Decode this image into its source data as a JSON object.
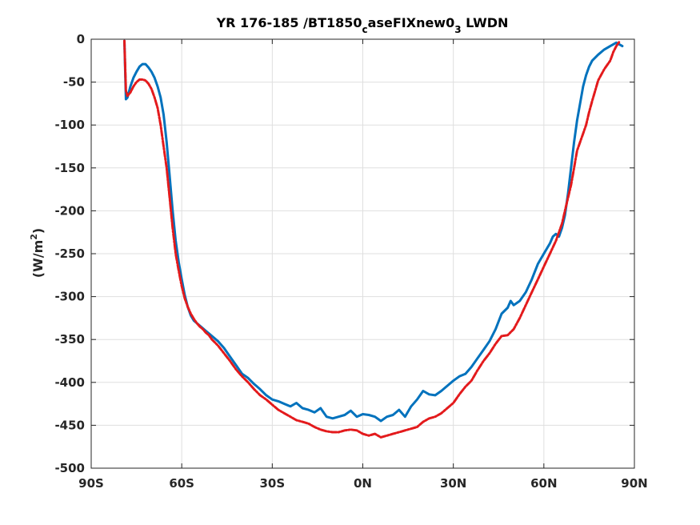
{
  "chart_data": {
    "type": "line",
    "title_parts": {
      "main": "YR 176-185 /BT1850",
      "sub1": "c",
      "mid": "aseFIXnew0",
      "sub2": "3",
      "end": " LWDN"
    },
    "ylabel_parts": {
      "main": "(W/m",
      "sup": "2",
      "end": ")"
    },
    "xlabel": "",
    "xlim": [
      -90,
      90
    ],
    "ylim": [
      -500,
      0
    ],
    "grid": true,
    "x_ticks": [
      {
        "value": -90,
        "label": "90S"
      },
      {
        "value": -60,
        "label": "60S"
      },
      {
        "value": -30,
        "label": "30S"
      },
      {
        "value": 0,
        "label": "0N"
      },
      {
        "value": 30,
        "label": "30N"
      },
      {
        "value": 60,
        "label": "60N"
      },
      {
        "value": 90,
        "label": "90N"
      }
    ],
    "y_ticks": [
      {
        "value": 0,
        "label": "0"
      },
      {
        "value": -50,
        "label": "-50"
      },
      {
        "value": -100,
        "label": "-100"
      },
      {
        "value": -150,
        "label": "-150"
      },
      {
        "value": -200,
        "label": "-200"
      },
      {
        "value": -250,
        "label": "-250"
      },
      {
        "value": -300,
        "label": "-300"
      },
      {
        "value": -350,
        "label": "-350"
      },
      {
        "value": -400,
        "label": "-400"
      },
      {
        "value": -450,
        "label": "-450"
      },
      {
        "value": -500,
        "label": "-500"
      }
    ],
    "series": [
      {
        "color": "#0072bd",
        "style": "solid",
        "x": [
          -79,
          -78.5,
          -78,
          -77,
          -76,
          -75,
          -74,
          -73,
          -72,
          -71,
          -70,
          -69,
          -68,
          -67,
          -66,
          -65,
          -64,
          -63,
          -62,
          -61,
          -60,
          -59,
          -58,
          -57,
          -56,
          -55,
          -54,
          -53,
          -52,
          -51,
          -50,
          -48,
          -46,
          -44,
          -42,
          -40,
          -38,
          -36,
          -34,
          -32,
          -30,
          -28,
          -26,
          -24,
          -22,
          -20,
          -18,
          -16,
          -14,
          -12,
          -10,
          -8,
          -6,
          -4,
          -2,
          0,
          2,
          4,
          6,
          8,
          10,
          12,
          14,
          16,
          18,
          20,
          22,
          24,
          26,
          28,
          30,
          32,
          34,
          36,
          38,
          40,
          42,
          44,
          46,
          48,
          49,
          50,
          52,
          54,
          56,
          58,
          60,
          62,
          63,
          64,
          65,
          66,
          67,
          68,
          69,
          70,
          71,
          72,
          73,
          74,
          75,
          76,
          78,
          80,
          82,
          84,
          85,
          86
        ],
        "y": [
          -2,
          -70,
          -68,
          -55,
          -45,
          -38,
          -32,
          -29,
          -29,
          -33,
          -38,
          -45,
          -55,
          -68,
          -88,
          -120,
          -160,
          -200,
          -235,
          -260,
          -280,
          -298,
          -312,
          -322,
          -328,
          -331,
          -334,
          -337,
          -340,
          -343,
          -346,
          -352,
          -360,
          -370,
          -380,
          -390,
          -395,
          -402,
          -408,
          -415,
          -420,
          -422,
          -425,
          -428,
          -424,
          -430,
          -432,
          -435,
          -430,
          -440,
          -442,
          -440,
          -438,
          -433,
          -440,
          -437,
          -438,
          -440,
          -445,
          -440,
          -438,
          -432,
          -440,
          -428,
          -420,
          -410,
          -414,
          -415,
          -410,
          -404,
          -398,
          -393,
          -390,
          -382,
          -372,
          -362,
          -352,
          -338,
          -320,
          -313,
          -305,
          -310,
          -305,
          -295,
          -280,
          -262,
          -250,
          -238,
          -230,
          -227,
          -230,
          -220,
          -205,
          -180,
          -150,
          -120,
          -95,
          -75,
          -55,
          -42,
          -32,
          -25,
          -18,
          -12,
          -8,
          -4,
          -6,
          -8
        ]
      },
      {
        "color": "#e31a1c",
        "style": "dashed",
        "x": [
          -79,
          -78.5,
          -78,
          -77,
          -76,
          -75,
          -74,
          -73,
          -72,
          -71,
          -70,
          -69,
          -68,
          -67,
          -66,
          -65,
          -64,
          -63,
          -62,
          -61,
          -60,
          -59,
          -58,
          -57,
          -56,
          -55,
          -54,
          -53,
          -52,
          -51,
          -50,
          -48,
          -46,
          -44,
          -42,
          -40,
          -38,
          -36,
          -34,
          -32,
          -30,
          -28,
          -26,
          -24,
          -22,
          -20,
          -18,
          -16,
          -14,
          -12,
          -10,
          -8,
          -6,
          -4,
          -2,
          0,
          2,
          4,
          6,
          8,
          10,
          12,
          14,
          16,
          18,
          20,
          22,
          24,
          26,
          28,
          30,
          32,
          34,
          36,
          38,
          40,
          42,
          44,
          46,
          48,
          50,
          52,
          54,
          56,
          58,
          60,
          62,
          64,
          66,
          67,
          68,
          69,
          70,
          71,
          72,
          73,
          74,
          75,
          76,
          77,
          78,
          80,
          82,
          83,
          84,
          85
        ],
        "y": [
          -2,
          -60,
          -66,
          -62,
          -55,
          -50,
          -47,
          -47,
          -48,
          -52,
          -58,
          -68,
          -80,
          -100,
          -125,
          -150,
          -185,
          -220,
          -250,
          -270,
          -288,
          -302,
          -312,
          -320,
          -326,
          -331,
          -335,
          -338,
          -342,
          -345,
          -350,
          -357,
          -366,
          -375,
          -385,
          -393,
          -400,
          -408,
          -415,
          -420,
          -426,
          -432,
          -436,
          -440,
          -444,
          -446,
          -448,
          -452,
          -455,
          -457,
          -458,
          -458,
          -456,
          -455,
          -456,
          -460,
          -462,
          -460,
          -464,
          -462,
          -460,
          -458,
          -456,
          -454,
          -452,
          -446,
          -442,
          -440,
          -436,
          -430,
          -424,
          -414,
          -405,
          -398,
          -386,
          -375,
          -366,
          -355,
          -346,
          -345,
          -338,
          -325,
          -310,
          -295,
          -280,
          -265,
          -250,
          -235,
          -215,
          -200,
          -185,
          -170,
          -150,
          -130,
          -120,
          -110,
          -100,
          -85,
          -72,
          -60,
          -48,
          -35,
          -25,
          -15,
          -8,
          -3
        ]
      }
    ]
  }
}
